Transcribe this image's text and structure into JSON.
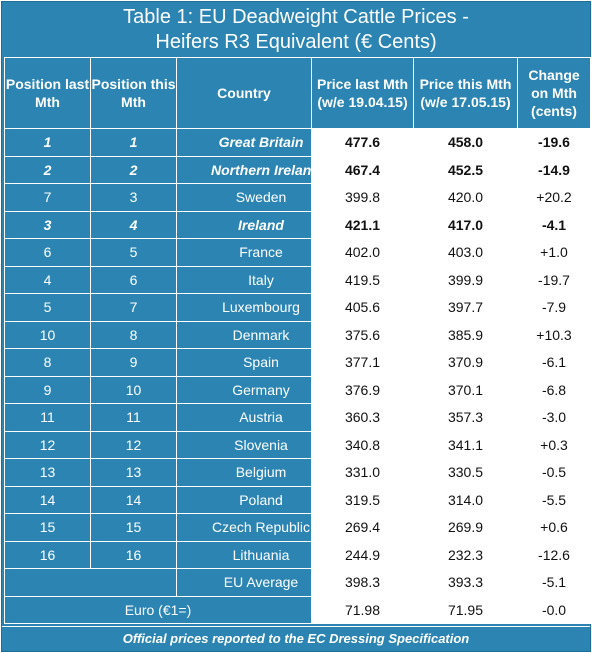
{
  "title": {
    "line1": "Table 1: EU Deadweight Cattle Prices -",
    "line2": "Heifers R3 Equivalent (€ Cents)"
  },
  "headers": [
    "Position last Mth",
    "Position this Mth",
    "Country",
    "Price last Mth (w/e 19.04.15)",
    "Price this Mth (w/e 17.05.15)",
    "Change on Mth (cents)"
  ],
  "rows": [
    {
      "last": "1",
      "this": "1",
      "country": "Great Britain",
      "price_last": "477.6",
      "price_this": "458.0",
      "change": "-19.6",
      "bold": true
    },
    {
      "last": "2",
      "this": "2",
      "country": "Northern Ireland",
      "price_last": "467.4",
      "price_this": "452.5",
      "change": "-14.9",
      "bold": true
    },
    {
      "last": "7",
      "this": "3",
      "country": "Sweden",
      "price_last": "399.8",
      "price_this": "420.0",
      "change": "+20.2",
      "bold": false
    },
    {
      "last": "3",
      "this": "4",
      "country": "Ireland",
      "price_last": "421.1",
      "price_this": "417.0",
      "change": "-4.1",
      "bold": true
    },
    {
      "last": "6",
      "this": "5",
      "country": "France",
      "price_last": "402.0",
      "price_this": "403.0",
      "change": "+1.0",
      "bold": false
    },
    {
      "last": "4",
      "this": "6",
      "country": "Italy",
      "price_last": "419.5",
      "price_this": "399.9",
      "change": "-19.7",
      "bold": false
    },
    {
      "last": "5",
      "this": "7",
      "country": "Luxembourg",
      "price_last": "405.6",
      "price_this": "397.7",
      "change": "-7.9",
      "bold": false
    },
    {
      "last": "10",
      "this": "8",
      "country": "Denmark",
      "price_last": "375.6",
      "price_this": "385.9",
      "change": "+10.3",
      "bold": false
    },
    {
      "last": "8",
      "this": "9",
      "country": "Spain",
      "price_last": "377.1",
      "price_this": "370.9",
      "change": "-6.1",
      "bold": false
    },
    {
      "last": "9",
      "this": "10",
      "country": "Germany",
      "price_last": "376.9",
      "price_this": "370.1",
      "change": "-6.8",
      "bold": false
    },
    {
      "last": "11",
      "this": "11",
      "country": "Austria",
      "price_last": "360.3",
      "price_this": "357.3",
      "change": "-3.0",
      "bold": false
    },
    {
      "last": "12",
      "this": "12",
      "country": "Slovenia",
      "price_last": "340.8",
      "price_this": "341.1",
      "change": "+0.3",
      "bold": false
    },
    {
      "last": "13",
      "this": "13",
      "country": "Belgium",
      "price_last": "331.0",
      "price_this": "330.5",
      "change": "-0.5",
      "bold": false
    },
    {
      "last": "14",
      "this": "14",
      "country": "Poland",
      "price_last": "319.5",
      "price_this": "314.0",
      "change": "-5.5",
      "bold": false
    },
    {
      "last": "15",
      "this": "15",
      "country": "Czech Republic",
      "price_last": "269.4",
      "price_this": "269.9",
      "change": "+0.6",
      "bold": false
    },
    {
      "last": "16",
      "this": "16",
      "country": "Lithuania",
      "price_last": "244.9",
      "price_this": "232.3",
      "change": "-12.6",
      "bold": false
    }
  ],
  "eu_average": {
    "label": "EU Average",
    "price_last": "398.3",
    "price_this": "393.3",
    "change": "-5.1"
  },
  "euro": {
    "label": "Euro (€1=)",
    "price_last": "71.98",
    "price_this": "71.95",
    "change": "-0.0"
  },
  "footer": "Official prices reported to the EC Dressing Specification",
  "colors": {
    "header_blue": "#2b84b2",
    "cell_white": "#ffffff"
  }
}
